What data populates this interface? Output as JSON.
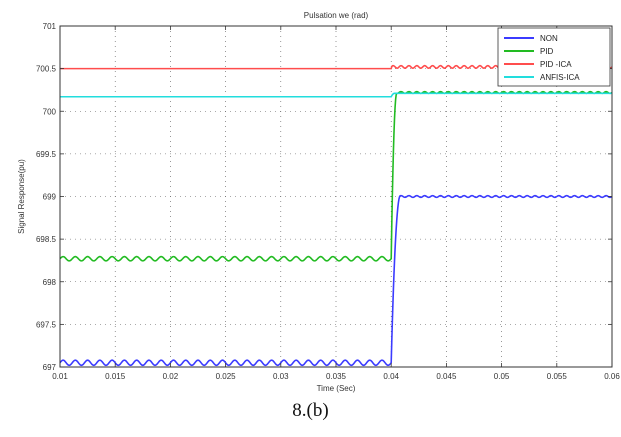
{
  "caption": "8.(b)",
  "chart_data": {
    "type": "line",
    "title": "Pulsation we (rad)",
    "xlabel": "Time (Sec)",
    "ylabel": "Signal Response(pu)",
    "xlim": [
      0.01,
      0.06
    ],
    "ylim": [
      697,
      701
    ],
    "x_ticks": [
      0.01,
      0.015,
      0.02,
      0.025,
      0.03,
      0.035,
      0.04,
      0.045,
      0.05,
      0.055,
      0.06
    ],
    "x_tick_labels": [
      "0.01",
      "0.015",
      "0.02",
      "0.025",
      "0.03",
      "0.035",
      "0.04",
      "0.045",
      "0.05",
      "0.055",
      "0.06"
    ],
    "y_ticks": [
      697,
      697.5,
      698,
      698.5,
      699,
      699.5,
      700,
      700.5,
      701
    ],
    "y_tick_labels": [
      "697",
      "697.5",
      "698",
      "698.5",
      "699",
      "699.5",
      "700",
      "700.5",
      "701"
    ],
    "grid": true,
    "legend_position": "top-right",
    "step_time": 0.04,
    "series": [
      {
        "name": "NON",
        "color": "#3b3bff",
        "before": 697.05,
        "after": 699.0,
        "ripple_before": 0.03,
        "ripple_after": 0.01,
        "rise": 0.0008
      },
      {
        "name": "PID",
        "color": "#22bb22",
        "before": 698.27,
        "after": 700.22,
        "ripple_before": 0.025,
        "ripple_after": 0.01,
        "rise": 0.0005
      },
      {
        "name": "PID -ICA",
        "color": "#ff4d4d",
        "before": 700.5,
        "after": 700.52,
        "ripple_before": 0.0,
        "ripple_after": 0.015,
        "rise": 0.0001
      },
      {
        "name": "ANFIS-ICA",
        "color": "#22dddd",
        "before": 700.17,
        "after": 700.21,
        "ripple_before": 0.0,
        "ripple_after": 0.0,
        "rise": 0.0003
      }
    ]
  }
}
